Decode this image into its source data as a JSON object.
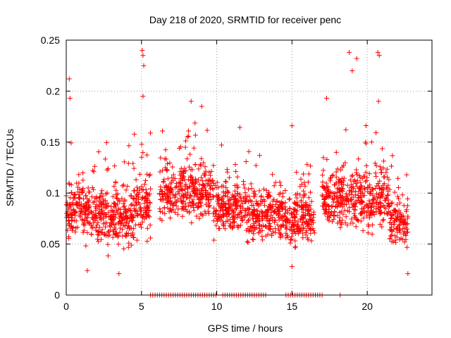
{
  "chart_data": {
    "type": "scatter",
    "title": "Day 218 of 2020, SRMTID for receiver penc",
    "xlabel": "GPS time / hours",
    "ylabel": "SRMTID / TECUs",
    "xlim": [
      0,
      24.3
    ],
    "ylim": [
      0,
      0.25
    ],
    "xticks": [
      0,
      5,
      10,
      15,
      20
    ],
    "yticks": [
      0,
      0.05,
      0.1,
      0.15,
      0.2,
      0.25
    ],
    "ytick_labels": [
      "0",
      "0.05",
      "0.1",
      "0.15",
      "0.2",
      "0.25"
    ],
    "grid": true,
    "marker": "+",
    "series": [
      {
        "name": "SRMTID",
        "color": "#ff0000",
        "points_note": "Dense scatter of SRMTID estimates; clusters generated from segment descriptors below",
        "segments": [
          {
            "x0": 0.0,
            "x1": 1.0,
            "mean": 0.085,
            "spread": 0.03
          },
          {
            "x0": 1.0,
            "x1": 2.5,
            "mean": 0.08,
            "spread": 0.028
          },
          {
            "x0": 2.5,
            "x1": 4.5,
            "mean": 0.075,
            "spread": 0.028
          },
          {
            "x0": 4.5,
            "x1": 5.6,
            "mean": 0.09,
            "spread": 0.03
          },
          {
            "x0": 6.2,
            "x1": 9.8,
            "mean": 0.1,
            "spread": 0.03
          },
          {
            "x0": 9.8,
            "x1": 12.0,
            "mean": 0.085,
            "spread": 0.025
          },
          {
            "x0": 12.0,
            "x1": 14.5,
            "mean": 0.08,
            "spread": 0.028
          },
          {
            "x0": 14.5,
            "x1": 16.5,
            "mean": 0.075,
            "spread": 0.025
          },
          {
            "x0": 17.0,
            "x1": 19.5,
            "mean": 0.095,
            "spread": 0.03
          },
          {
            "x0": 19.5,
            "x1": 21.5,
            "mean": 0.095,
            "spread": 0.03
          },
          {
            "x0": 21.5,
            "x1": 22.7,
            "mean": 0.07,
            "spread": 0.025
          }
        ],
        "peaks": [
          {
            "x": 0.2,
            "y": 0.212
          },
          {
            "x": 0.25,
            "y": 0.193
          },
          {
            "x": 5.05,
            "y": 0.24
          },
          {
            "x": 5.1,
            "y": 0.235
          },
          {
            "x": 5.15,
            "y": 0.225
          },
          {
            "x": 5.1,
            "y": 0.195
          },
          {
            "x": 8.3,
            "y": 0.19
          },
          {
            "x": 9.0,
            "y": 0.185
          },
          {
            "x": 15.0,
            "y": 0.166
          },
          {
            "x": 17.3,
            "y": 0.193
          },
          {
            "x": 18.8,
            "y": 0.238
          },
          {
            "x": 19.0,
            "y": 0.22
          },
          {
            "x": 19.3,
            "y": 0.232
          },
          {
            "x": 20.7,
            "y": 0.238
          },
          {
            "x": 20.8,
            "y": 0.235
          },
          {
            "x": 20.75,
            "y": 0.19
          },
          {
            "x": 1.4,
            "y": 0.024
          },
          {
            "x": 3.5,
            "y": 0.021
          },
          {
            "x": 15.0,
            "y": 0.028
          },
          {
            "x": 22.7,
            "y": 0.021
          }
        ],
        "zeros": [
          5.6,
          5.75,
          5.9,
          6.05,
          6.2,
          6.35,
          6.5,
          6.65,
          6.8,
          6.95,
          7.1,
          7.25,
          7.4,
          7.55,
          7.7,
          7.85,
          8.0,
          8.15,
          8.3,
          8.45,
          8.6,
          8.75,
          8.9,
          9.05,
          9.2,
          9.35,
          9.5,
          9.65,
          9.8,
          9.95,
          10.4,
          10.55,
          10.7,
          10.85,
          11.0,
          11.15,
          11.3,
          11.45,
          11.6,
          11.75,
          11.9,
          12.05,
          12.2,
          12.35,
          12.5,
          12.65,
          12.8,
          12.95,
          13.1,
          13.25,
          14.6,
          14.75,
          14.9,
          15.05,
          15.2,
          15.35,
          15.5,
          15.65,
          15.8,
          15.95,
          16.1,
          16.25,
          16.4,
          16.55,
          16.7,
          16.85,
          17.0,
          18.2
        ]
      }
    ]
  }
}
